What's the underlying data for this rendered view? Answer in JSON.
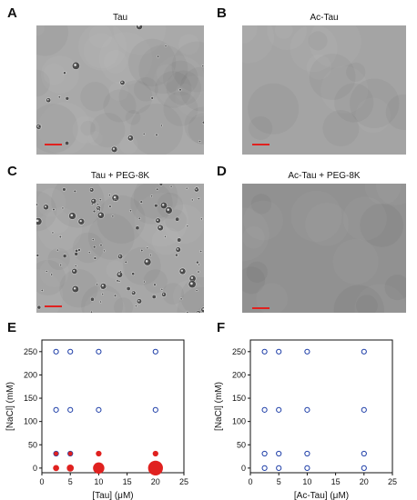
{
  "figure": {
    "panels": [
      {
        "letter": "A",
        "title": "Tau",
        "image": "microscopy-droplets-many"
      },
      {
        "letter": "B",
        "title": "Ac-Tau",
        "image": "microscopy-uniform"
      },
      {
        "letter": "C",
        "title": "Tau + PEG-8K",
        "image": "microscopy-droplets-dense"
      },
      {
        "letter": "D",
        "title": "Ac-Tau + PEG-8K",
        "image": "microscopy-uniform-dark"
      },
      {
        "letter": "E",
        "title": ""
      },
      {
        "letter": "F",
        "title": ""
      }
    ],
    "scalebar_color": "#e0211f"
  },
  "chart_data": [
    {
      "type": "scatter",
      "panel": "E",
      "xlabel": "[Tau] (μM)",
      "ylabel": "[NaCl] (mM)",
      "xlim": [
        0,
        25
      ],
      "ylim": [
        -10,
        275
      ],
      "xticks": [
        0,
        5,
        10,
        15,
        20,
        25
      ],
      "yticks": [
        0,
        50,
        100,
        150,
        200,
        250
      ],
      "series": [
        {
          "marker": "open-circle",
          "color": "#1f3fa8",
          "points": [
            [
              2.5,
              250
            ],
            [
              5,
              250
            ],
            [
              10,
              250
            ],
            [
              20,
              250
            ],
            [
              2.5,
              125
            ],
            [
              5,
              125
            ],
            [
              10,
              125
            ],
            [
              20,
              125
            ],
            [
              2.5,
              31
            ],
            [
              5,
              31
            ]
          ]
        },
        {
          "marker": "filled-circle",
          "color": "#e0211f",
          "points": [
            [
              2.5,
              31,
              1
            ],
            [
              5,
              31,
              1
            ],
            [
              10,
              31,
              1.3
            ],
            [
              20,
              31,
              1.3
            ],
            [
              2.5,
              0,
              1.4
            ],
            [
              5,
              0,
              1.6
            ],
            [
              10,
              0,
              2.6
            ],
            [
              20,
              0,
              3.4
            ]
          ]
        }
      ]
    },
    {
      "type": "scatter",
      "panel": "F",
      "xlabel": "[Ac-Tau] (μM)",
      "ylabel": "[NaCl] (mM)",
      "xlim": [
        0,
        25
      ],
      "ylim": [
        -10,
        275
      ],
      "xticks": [
        0,
        5,
        10,
        15,
        20,
        25
      ],
      "yticks": [
        0,
        50,
        100,
        150,
        200,
        250
      ],
      "series": [
        {
          "marker": "open-circle",
          "color": "#1f3fa8",
          "points": [
            [
              2.5,
              250
            ],
            [
              5,
              250
            ],
            [
              10,
              250
            ],
            [
              20,
              250
            ],
            [
              2.5,
              125
            ],
            [
              5,
              125
            ],
            [
              10,
              125
            ],
            [
              20,
              125
            ],
            [
              2.5,
              31
            ],
            [
              5,
              31
            ],
            [
              10,
              31
            ],
            [
              20,
              31
            ],
            [
              2.5,
              0
            ],
            [
              5,
              0
            ],
            [
              10,
              0
            ],
            [
              20,
              0
            ]
          ]
        }
      ]
    }
  ]
}
